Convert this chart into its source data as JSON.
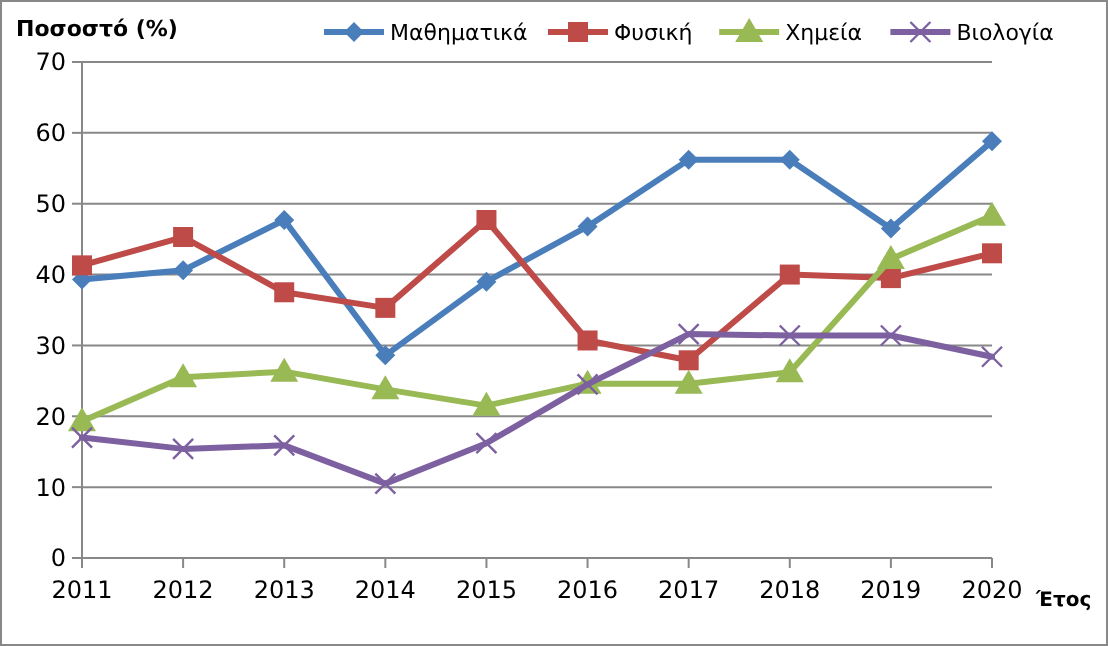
{
  "chart_data": {
    "type": "line",
    "ylabel": "Ποσοστό (%)",
    "xlabel": "Έτος",
    "categories": [
      "2011",
      "2012",
      "2013",
      "2014",
      "2015",
      "2016",
      "2017",
      "2018",
      "2019",
      "2020"
    ],
    "series": [
      {
        "name": "Μαθηματικά",
        "color": "#4a7ebb",
        "marker": "diamond",
        "values": [
          39.3,
          40.6,
          47.7,
          28.6,
          39,
          46.8,
          56.2,
          56.2,
          46.5,
          58.8
        ]
      },
      {
        "name": "Φυσική",
        "color": "#be4b48",
        "marker": "square",
        "values": [
          41.3,
          45.3,
          37.5,
          35.3,
          47.7,
          30.7,
          27.9,
          40,
          39.5,
          43
        ]
      },
      {
        "name": "Χημεία",
        "color": "#98b954",
        "marker": "triangle",
        "values": [
          19.3,
          25.5,
          26.3,
          23.8,
          21.5,
          24.6,
          24.6,
          26.2,
          42.2,
          48.3
        ]
      },
      {
        "name": "Βιολογία",
        "color": "#7d60a0",
        "marker": "cross",
        "values": [
          17,
          15.4,
          15.9,
          10.5,
          16.2,
          24.5,
          31.6,
          31.4,
          31.4,
          28.4
        ]
      }
    ],
    "ylim": [
      0,
      70
    ],
    "yticks": [
      0,
      10,
      20,
      30,
      40,
      50,
      60,
      70
    ],
    "grid": "y",
    "legend": "top",
    "line_style": "solid"
  }
}
